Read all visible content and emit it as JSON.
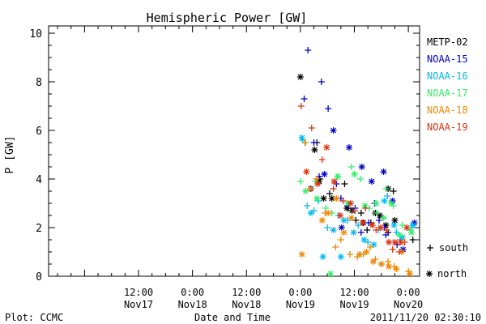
{
  "chart_data": {
    "type": "scatter",
    "title": "Hemispheric Power [GW]",
    "xlabel": "Date and Time",
    "ylabel": "P [GW]",
    "ylim": [
      0,
      10.3
    ],
    "xlim": [
      "2011-11-16 16:00",
      "2011-11-20 02:30"
    ],
    "y_ticks": [
      "0",
      "2",
      "4",
      "6",
      "8",
      "10"
    ],
    "x_ticks": [
      {
        "at": "2011-11-17 12:00",
        "line1": "12:00",
        "line2": "Nov17"
      },
      {
        "at": "2011-11-18 00:00",
        "line1": "0:00",
        "line2": "Nov18"
      },
      {
        "at": "2011-11-18 12:00",
        "line1": "12:00",
        "line2": "Nov18"
      },
      {
        "at": "2011-11-19 00:00",
        "line1": "0:00",
        "line2": "Nov19"
      },
      {
        "at": "2011-11-19 12:00",
        "line1": "12:00",
        "line2": "Nov19"
      },
      {
        "at": "2011-11-20 00:00",
        "line1": "0:00",
        "line2": "Nov20"
      }
    ],
    "grid": false,
    "legend_position": "right",
    "marker_legend": {
      "south": "south",
      "north": "north",
      "south_symbol": "+",
      "north_symbol": "*"
    },
    "series": [
      {
        "name": "METP-02",
        "color": "#000000",
        "south": [
          [
            "2011-11-19 03:40",
            5.5
          ],
          [
            "2011-11-19 04:20",
            4.0
          ],
          [
            "2011-11-19 06:30",
            3.4
          ],
          [
            "2011-11-19 09:50",
            3.8
          ],
          [
            "2011-11-19 10:40",
            2.8
          ],
          [
            "2011-11-19 12:20",
            2.3
          ],
          [
            "2011-11-19 13:30",
            2.6
          ],
          [
            "2011-11-19 14:50",
            1.9
          ],
          [
            "2011-11-19 15:40",
            2.2
          ],
          [
            "2011-11-19 19:30",
            1.8
          ],
          [
            "2011-11-19 20:40",
            3.5
          ],
          [
            "2011-11-20 01:00",
            1.5
          ]
        ],
        "north": [
          [
            "2011-11-19 00:00",
            8.2
          ],
          [
            "2011-11-19 03:10",
            5.2
          ],
          [
            "2011-11-19 04:10",
            3.9
          ],
          [
            "2011-11-19 05:10",
            3.2
          ],
          [
            "2011-11-19 07:00",
            3.2
          ],
          [
            "2011-11-19 10:20",
            2.8
          ],
          [
            "2011-11-19 11:30",
            2.7
          ],
          [
            "2011-11-19 14:00",
            2.2
          ],
          [
            "2011-11-19 16:40",
            2.6
          ],
          [
            "2011-11-19 17:40",
            2.5
          ],
          [
            "2011-11-19 19:00",
            2.1
          ],
          [
            "2011-11-19 19:30",
            3.6
          ],
          [
            "2011-11-19 21:00",
            2.3
          ]
        ]
      },
      {
        "name": "NOAA-15",
        "color": "#0000cc",
        "south": [
          [
            "2011-11-19 00:50",
            7.3
          ],
          [
            "2011-11-19 01:40",
            9.3
          ],
          [
            "2011-11-19 03:00",
            5.5
          ],
          [
            "2011-11-19 04:10",
            4.1
          ],
          [
            "2011-11-19 04:40",
            8.0
          ],
          [
            "2011-11-19 06:10",
            6.9
          ],
          [
            "2011-11-19 08:00",
            3.8
          ],
          [
            "2011-11-19 09:00",
            3.2
          ],
          [
            "2011-11-19 10:30",
            2.9
          ],
          [
            "2011-11-19 12:10",
            2.8
          ],
          [
            "2011-11-19 13:30",
            1.8
          ],
          [
            "2011-11-19 15:10",
            2.2
          ],
          [
            "2011-11-19 16:30",
            3.0
          ],
          [
            "2011-11-19 17:30",
            2.3
          ],
          [
            "2011-11-19 18:40",
            2.0
          ],
          [
            "2011-11-19 19:00",
            1.7
          ],
          [
            "2011-11-19 21:30",
            1.3
          ]
        ],
        "north": [
          [
            "2011-11-19 02:20",
            3.6
          ],
          [
            "2011-11-19 05:20",
            4.2
          ],
          [
            "2011-11-19 07:20",
            6.0
          ],
          [
            "2011-11-19 09:10",
            2.0
          ],
          [
            "2011-11-19 10:50",
            5.3
          ],
          [
            "2011-11-19 13:40",
            4.5
          ],
          [
            "2011-11-19 15:50",
            3.9
          ],
          [
            "2011-11-19 18:30",
            4.3
          ],
          [
            "2011-11-19 20:30",
            3.1
          ],
          [
            "2011-11-19 22:50",
            1.1
          ],
          [
            "2011-11-20 01:20",
            2.2
          ]
        ]
      },
      {
        "name": "NOAA-16",
        "color": "#00bbee",
        "south": [
          [
            "2011-11-19 00:30",
            5.6
          ],
          [
            "2011-11-19 01:30",
            2.9
          ],
          [
            "2011-11-19 03:00",
            2.7
          ],
          [
            "2011-11-19 04:00",
            3.1
          ],
          [
            "2011-11-19 06:00",
            2.0
          ],
          [
            "2011-11-19 08:30",
            2.5
          ],
          [
            "2011-11-19 10:30",
            2.3
          ],
          [
            "2011-11-19 12:50",
            2.1
          ],
          [
            "2011-11-19 15:00",
            1.4
          ],
          [
            "2011-11-19 17:20",
            1.9
          ],
          [
            "2011-11-19 19:20",
            3.3
          ],
          [
            "2011-11-19 21:20",
            1.8
          ],
          [
            "2011-11-19 22:10",
            1.5
          ],
          [
            "2011-11-20 00:40",
            2.0
          ]
        ],
        "north": [
          [
            "2011-11-19 00:20",
            5.7
          ],
          [
            "2011-11-19 02:20",
            2.6
          ],
          [
            "2011-11-19 05:00",
            0.8
          ],
          [
            "2011-11-19 07:20",
            1.9
          ],
          [
            "2011-11-19 09:40",
            2.3
          ],
          [
            "2011-11-19 11:50",
            1.8
          ],
          [
            "2011-11-19 14:10",
            1.5
          ],
          [
            "2011-11-19 16:20",
            1.3
          ],
          [
            "2011-11-19 18:40",
            3.1
          ],
          [
            "2011-11-19 20:50",
            2.1
          ],
          [
            "2011-11-19 22:40",
            1.6
          ],
          [
            "2011-11-20 01:00",
            2.1
          ],
          [
            "2011-11-19 09:00",
            0.8
          ]
        ]
      },
      {
        "name": "NOAA-17",
        "color": "#33ee66",
        "south": [
          [
            "2011-11-19 00:00",
            3.9
          ],
          [
            "2011-11-19 01:10",
            5.5
          ],
          [
            "2011-11-19 03:20",
            3.9
          ],
          [
            "2011-11-19 05:40",
            2.8
          ],
          [
            "2011-11-19 07:00",
            2.6
          ],
          [
            "2011-11-19 08:10",
            4.1
          ],
          [
            "2011-11-19 11:20",
            4.5
          ],
          [
            "2011-11-19 13:20",
            4.0
          ],
          [
            "2011-11-19 15:20",
            2.8
          ],
          [
            "2011-11-19 17:00",
            2.6
          ],
          [
            "2011-11-19 19:00",
            3.6
          ],
          [
            "2011-11-19 20:40",
            2.9
          ],
          [
            "2011-11-19 22:40",
            2.1
          ],
          [
            "2011-11-20 00:30",
            1.9
          ]
        ],
        "north": [
          [
            "2011-11-19 01:10",
            3.5
          ],
          [
            "2011-11-19 03:40",
            3.2
          ],
          [
            "2011-11-19 06:40",
            0.1
          ],
          [
            "2011-11-19 08:20",
            4.1
          ],
          [
            "2011-11-19 10:30",
            3.0
          ],
          [
            "2011-11-19 12:00",
            4.2
          ],
          [
            "2011-11-19 14:20",
            2.9
          ],
          [
            "2011-11-19 16:50",
            3.0
          ],
          [
            "2011-11-19 18:30",
            2.4
          ],
          [
            "2011-11-19 20:10",
            3.0
          ],
          [
            "2011-11-19 22:00",
            1.7
          ],
          [
            "2011-11-20 00:40",
            1.8
          ]
        ]
      },
      {
        "name": "NOAA-18",
        "color": "#ee8800",
        "south": [
          [
            "2011-11-19 01:00",
            5.5
          ],
          [
            "2011-11-19 03:30",
            4.0
          ],
          [
            "2011-11-19 05:30",
            2.6
          ],
          [
            "2011-11-19 07:50",
            1.2
          ],
          [
            "2011-11-19 09:00",
            1.5
          ],
          [
            "2011-11-19 11:00",
            0.9
          ],
          [
            "2011-11-19 12:40",
            0.8
          ],
          [
            "2011-11-19 14:00",
            0.9
          ],
          [
            "2011-11-19 15:30",
            1.2
          ],
          [
            "2011-11-19 16:40",
            0.7
          ],
          [
            "2011-11-19 18:00",
            0.5
          ],
          [
            "2011-11-19 19:30",
            0.6
          ],
          [
            "2011-11-19 20:50",
            0.4
          ],
          [
            "2011-11-20 00:00",
            0.2
          ]
        ],
        "north": [
          [
            "2011-11-19 00:20",
            0.9
          ],
          [
            "2011-11-19 02:10",
            3.6
          ],
          [
            "2011-11-19 04:50",
            2.3
          ],
          [
            "2011-11-19 06:10",
            2.6
          ],
          [
            "2011-11-19 08:00",
            3.2
          ],
          [
            "2011-11-19 09:40",
            1.8
          ],
          [
            "2011-11-19 11:20",
            2.4
          ],
          [
            "2011-11-19 13:10",
            0.9
          ],
          [
            "2011-11-19 14:40",
            1.0
          ],
          [
            "2011-11-19 16:10",
            0.6
          ],
          [
            "2011-11-19 18:00",
            0.5
          ],
          [
            "2011-11-19 19:40",
            0.4
          ],
          [
            "2011-11-19 21:20",
            0.3
          ],
          [
            "2011-11-19 22:30",
            1.0
          ],
          [
            "2011-11-20 00:20",
            0.1
          ]
        ]
      },
      {
        "name": "NOAA-19",
        "color": "#dd3311",
        "south": [
          [
            "2011-11-19 00:10",
            7.0
          ],
          [
            "2011-11-19 02:30",
            6.1
          ],
          [
            "2011-11-19 04:50",
            4.8
          ],
          [
            "2011-11-19 07:20",
            3.6
          ],
          [
            "2011-11-19 09:30",
            3.1
          ],
          [
            "2011-11-19 12:10",
            2.7
          ],
          [
            "2011-11-19 14:30",
            2.8
          ],
          [
            "2011-11-19 16:50",
            1.9
          ],
          [
            "2011-11-19 19:10",
            1.9
          ],
          [
            "2011-11-19 20:30",
            1.1
          ],
          [
            "2011-11-19 22:00",
            1.0
          ],
          [
            "2011-11-19 23:10",
            1.4
          ]
        ],
        "north": [
          [
            "2011-11-19 01:20",
            4.3
          ],
          [
            "2011-11-19 03:50",
            3.8
          ],
          [
            "2011-11-19 05:50",
            5.3
          ],
          [
            "2011-11-19 07:30",
            3.9
          ],
          [
            "2011-11-19 08:50",
            2.5
          ],
          [
            "2011-11-19 11:10",
            3.0
          ],
          [
            "2011-11-19 13:50",
            2.2
          ],
          [
            "2011-11-19 16:00",
            2.1
          ],
          [
            "2011-11-19 17:50",
            2.0
          ],
          [
            "2011-11-19 19:40",
            1.4
          ],
          [
            "2011-11-19 21:00",
            1.4
          ],
          [
            "2011-11-19 22:20",
            1.4
          ],
          [
            "2011-11-19 23:40",
            2.0
          ]
        ]
      }
    ]
  },
  "footer": {
    "left": "Plot: CCMC",
    "center": "Date and Time",
    "right": "2011/11/20 02:30:10"
  }
}
